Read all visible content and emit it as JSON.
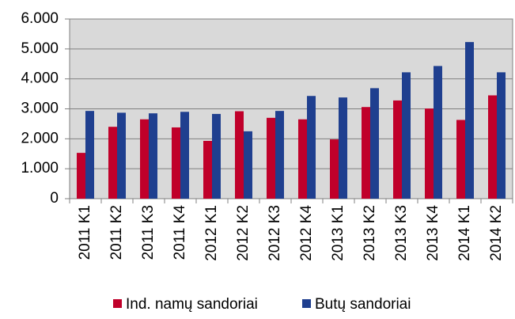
{
  "chart_data": {
    "type": "bar",
    "categories": [
      "2011 K1",
      "2011 K2",
      "2011 K3",
      "2011 K4",
      "2012 K1",
      "2012 K2",
      "2012 K3",
      "2012 K4",
      "2013 K1",
      "2013 K2",
      "2013 K3",
      "2013 K4",
      "2014 K1",
      "2014 K2"
    ],
    "series": [
      {
        "name": "Ind. namų sandoriai",
        "color": "#c0002a",
        "values": [
          1530,
          2400,
          2650,
          2380,
          1930,
          2920,
          2700,
          2650,
          1980,
          3060,
          3280,
          3010,
          2630,
          3450
        ]
      },
      {
        "name": "Butų sandoriai",
        "color": "#1f3f8f",
        "values": [
          2930,
          2870,
          2850,
          2900,
          2830,
          2250,
          2930,
          3430,
          3380,
          3690,
          4220,
          4430,
          5230,
          4220
        ]
      }
    ],
    "ylim": [
      0,
      6000
    ],
    "yticks": [
      0,
      {
        "value": 1000,
        "label": "1.000"
      },
      {
        "value": 2000,
        "label": "2.000"
      },
      {
        "value": 3000,
        "label": "3.000"
      },
      {
        "value": 4000,
        "label": "4.000"
      },
      {
        "value": 5000,
        "label": "5.000"
      },
      {
        "value": 6000,
        "label": "6.000"
      }
    ],
    "grid": true,
    "legend": "bottom"
  }
}
